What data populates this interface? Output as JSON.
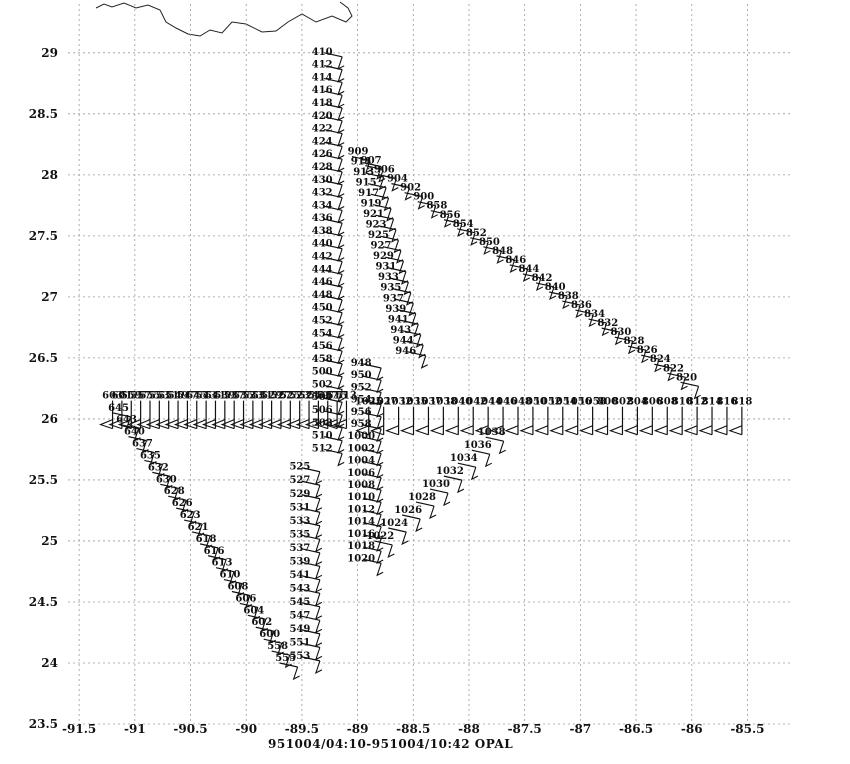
{
  "chart_data": {
    "type": "scatter",
    "caption": "951004/04:10-951004/10:42   OPAL",
    "x_ticks": [
      "-91.5",
      "-91",
      "-90.5",
      "-90",
      "-89.5",
      "-89",
      "-88.5",
      "-88",
      "-87.5",
      "-87",
      "-86.5",
      "-86",
      "-85.5"
    ],
    "y_ticks": [
      "23.5",
      "24",
      "24.5",
      "25",
      "25.5",
      "26",
      "26.5",
      "27",
      "27.5",
      "28",
      "28.5",
      "29"
    ],
    "xlim": [
      -91.6,
      -85.1
    ],
    "ylim": [
      23.5,
      29.4
    ],
    "grid": true,
    "legs": [
      {
        "name": "leg-north",
        "x": [
          -89.3,
          -89.3
        ],
        "y": [
          29.0,
          25.75
        ],
        "labels": [
          "410",
          "412",
          "414",
          "416",
          "418",
          "420",
          "422",
          "424",
          "426",
          "428",
          "430",
          "432",
          "434",
          "436",
          "438",
          "440",
          "442",
          "444",
          "446",
          "448",
          "450",
          "452",
          "454",
          "456",
          "458",
          "500",
          "502",
          "504",
          "506",
          "508",
          "510",
          "512"
        ]
      },
      {
        "name": "leg-south",
        "x": [
          -89.5,
          -89.5
        ],
        "y": [
          25.6,
          24.05
        ],
        "labels": [
          "525",
          "527",
          "529",
          "531",
          "533",
          "535",
          "537",
          "539",
          "541",
          "543",
          "545",
          "547",
          "549",
          "551",
          "553"
        ]
      },
      {
        "name": "leg-west",
        "x": [
          -89.1,
          -91.2
        ],
        "y": [
          26.15,
          26.15
        ],
        "labels": [
          "513",
          "515",
          "517",
          "519",
          "521",
          "523",
          "525",
          "527",
          "529",
          "531",
          "533",
          "535",
          "537",
          "539",
          "541",
          "543",
          "545",
          "547",
          "549",
          "551",
          "553",
          "555",
          "557",
          "559",
          "601",
          "603"
        ]
      },
      {
        "name": "leg-southwest",
        "x": [
          -91.2,
          -89.7
        ],
        "y": [
          26.05,
          24.0
        ],
        "labels": [
          "645",
          "643",
          "640",
          "637",
          "635",
          "632",
          "630",
          "628",
          "626",
          "623",
          "621",
          "618",
          "616",
          "613",
          "610",
          "608",
          "606",
          "604",
          "602",
          "600",
          "558",
          "555"
        ]
      },
      {
        "name": "leg-northeast",
        "x": [
          -89.05,
          -86.1
        ],
        "y": [
          28.15,
          26.3
        ],
        "labels": [
          "909",
          "907",
          "906",
          "904",
          "902",
          "900",
          "858",
          "856",
          "854",
          "852",
          "850",
          "848",
          "846",
          "844",
          "842",
          "840",
          "838",
          "836",
          "834",
          "832",
          "830",
          "828",
          "826",
          "824",
          "822",
          "820"
        ]
      },
      {
        "name": "leg-central",
        "x": [
          -88.95,
          -88.55
        ],
        "y": [
          28.1,
          26.55
        ],
        "labels": [
          "911",
          "913",
          "915",
          "917",
          "919",
          "921",
          "923",
          "925",
          "927",
          "929",
          "931",
          "933",
          "935",
          "937",
          "939",
          "941",
          "943",
          "944",
          "946"
        ]
      },
      {
        "name": "leg-east",
        "x": [
          -88.9,
          -85.55
        ],
        "y": [
          26.1,
          26.1
        ],
        "labels": [
          "1025",
          "1027",
          "1032",
          "1035",
          "1037",
          "1038",
          "1040",
          "1042",
          "1044",
          "1046",
          "1048",
          "1050",
          "1052",
          "1054",
          "1056",
          "1058",
          "800",
          "802",
          "804",
          "806",
          "808",
          "810",
          "812",
          "814",
          "816",
          "818"
        ]
      },
      {
        "name": "leg-return",
        "x": [
          -88.95,
          -88.95
        ],
        "y": [
          26.45,
          24.85
        ],
        "labels": [
          "948",
          "950",
          "952",
          "954",
          "956",
          "958",
          "1000",
          "1002",
          "1004",
          "1006",
          "1008",
          "1010",
          "1012",
          "1014",
          "1016",
          "1018",
          "1020"
        ]
      },
      {
        "name": "leg-return-east",
        "x": [
          -88.85,
          -87.85
        ],
        "y": [
          25.0,
          25.85
        ],
        "labels": [
          "1022",
          "1024",
          "1026",
          "1028",
          "1030",
          "1032",
          "1034",
          "1036",
          "1038"
        ]
      }
    ]
  }
}
